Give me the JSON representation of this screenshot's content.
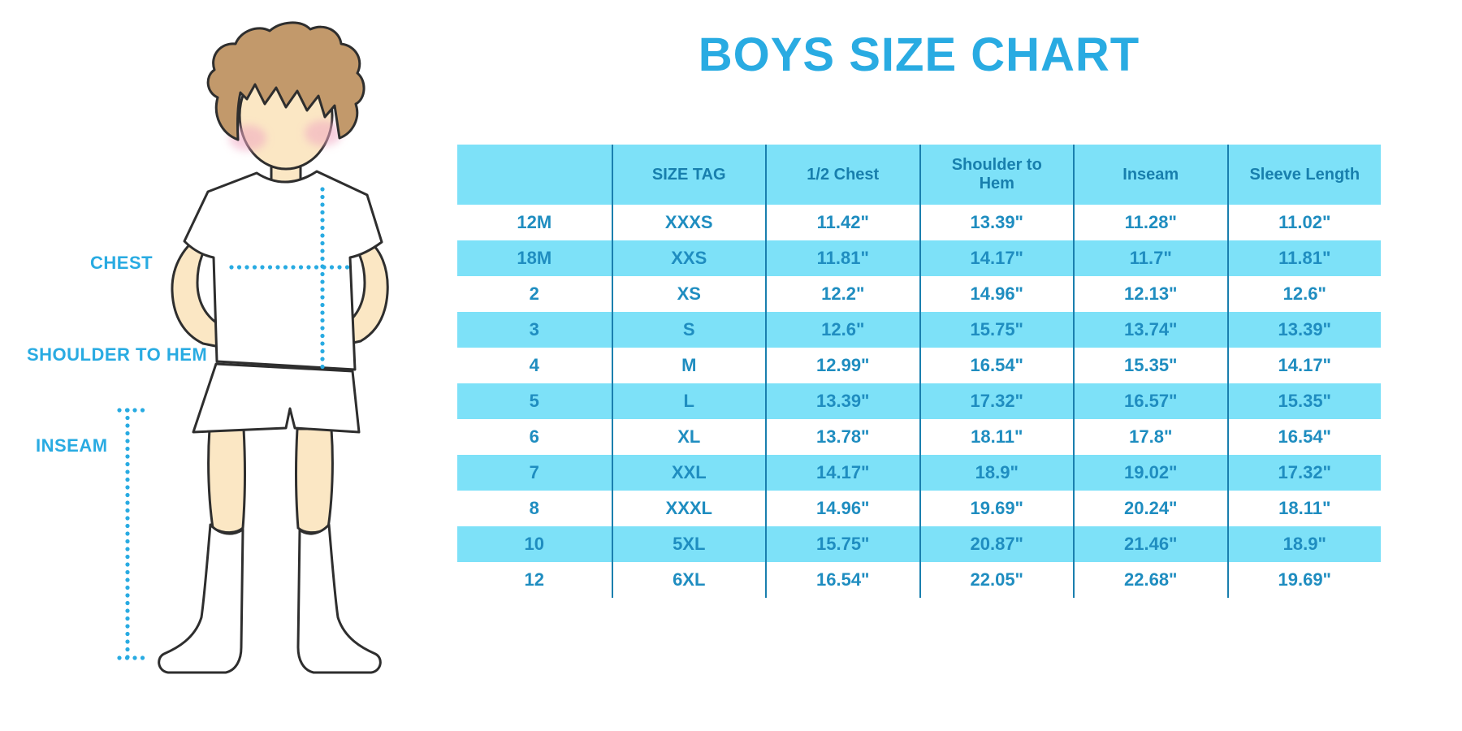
{
  "title": "BOYS SIZE CHART",
  "labels": {
    "chest": "CHEST",
    "shoulder_to_hem": "SHOULDER TO HEM",
    "inseam": "INSEAM"
  },
  "colors": {
    "accent_blue": "#29ABE2",
    "stripe_blue": "#7DE1F8",
    "header_text": "#187FAD",
    "cell_text": "#1F8DC0",
    "divider": "#1A7FAE",
    "skin": "#FBE7C4",
    "hair": "#C2996B",
    "cheek": "#F0A8C2",
    "outline": "#2E2E2E"
  },
  "chart_data": {
    "type": "table",
    "title": "BOYS SIZE CHART",
    "columns": [
      "",
      "SIZE TAG",
      "1/2 Chest",
      "Shoulder to Hem",
      "Inseam",
      "Sleeve Length"
    ],
    "rows": [
      [
        "12M",
        "XXXS",
        "11.42\"",
        "13.39\"",
        "11.28\"",
        "11.02\""
      ],
      [
        "18M",
        "XXS",
        "11.81\"",
        "14.17\"",
        "11.7\"",
        "11.81\""
      ],
      [
        "2",
        "XS",
        "12.2\"",
        "14.96\"",
        "12.13\"",
        "12.6\""
      ],
      [
        "3",
        "S",
        "12.6\"",
        "15.75\"",
        "13.74\"",
        "13.39\""
      ],
      [
        "4",
        "M",
        "12.99\"",
        "16.54\"",
        "15.35\"",
        "14.17\""
      ],
      [
        "5",
        "L",
        "13.39\"",
        "17.32\"",
        "16.57\"",
        "15.35\""
      ],
      [
        "6",
        "XL",
        "13.78\"",
        "18.11\"",
        "17.8\"",
        "16.54\""
      ],
      [
        "7",
        "XXL",
        "14.17\"",
        "18.9\"",
        "19.02\"",
        "17.32\""
      ],
      [
        "8",
        "XXXL",
        "14.96\"",
        "19.69\"",
        "20.24\"",
        "18.11\""
      ],
      [
        "10",
        "5XL",
        "15.75\"",
        "20.87\"",
        "21.46\"",
        "18.9\""
      ],
      [
        "12",
        "6XL",
        "16.54\"",
        "22.05\"",
        "22.68\"",
        "19.69\""
      ]
    ],
    "measurement_lines": [
      "chest",
      "shoulder to hem",
      "inseam"
    ],
    "units": "inches"
  }
}
